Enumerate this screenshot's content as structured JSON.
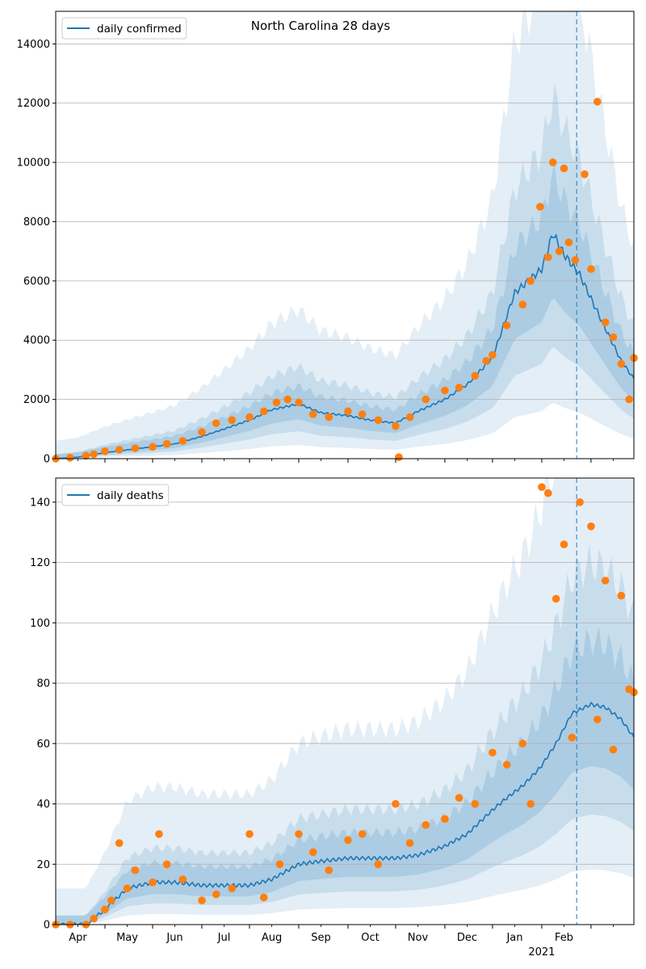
{
  "chart_data": [
    {
      "type": "line",
      "title": "North Carolina 28 days",
      "xlabel": "",
      "ylabel": "",
      "ylim": [
        0,
        15100
      ],
      "yticks": [
        0,
        2000,
        4000,
        6000,
        8000,
        10000,
        12000,
        14000
      ],
      "ytick_labels": [
        "0",
        "2000",
        "4000",
        "6000",
        "8000",
        "10000",
        "12000",
        "14000"
      ],
      "grid": "horizontal",
      "legend_position": "top-left",
      "series": [
        {
          "name": "daily confirmed",
          "style": "line",
          "color": "#1f77b4",
          "x": [
            "2020-03-01",
            "2020-03-15",
            "2020-04-01",
            "2020-04-15",
            "2020-05-01",
            "2020-05-15",
            "2020-06-01",
            "2020-06-15",
            "2020-07-01",
            "2020-07-15",
            "2020-08-01",
            "2020-08-15",
            "2020-09-01",
            "2020-09-15",
            "2020-10-01",
            "2020-10-15",
            "2020-11-01",
            "2020-11-15",
            "2020-12-01",
            "2020-12-15",
            "2021-01-01",
            "2021-01-08",
            "2021-01-15",
            "2021-01-25",
            "2021-02-01",
            "2021-02-10",
            "2021-02-20",
            "2021-02-28"
          ],
          "values": [
            0,
            50,
            200,
            300,
            400,
            500,
            750,
            1000,
            1300,
            1650,
            1850,
            1550,
            1450,
            1300,
            1200,
            1600,
            2000,
            2500,
            3400,
            5600,
            6400,
            7600,
            6900,
            6200,
            5400,
            4400,
            3300,
            2700
          ]
        },
        {
          "name": "",
          "style": "scatter",
          "color": "#ff7f0e",
          "x": [
            "2020-03-01",
            "2020-03-10",
            "2020-03-20",
            "2020-03-25",
            "2020-04-01",
            "2020-04-10",
            "2020-04-20",
            "2020-05-01",
            "2020-05-10",
            "2020-05-20",
            "2020-06-01",
            "2020-06-10",
            "2020-06-20",
            "2020-07-01",
            "2020-07-10",
            "2020-07-18",
            "2020-07-25",
            "2020-08-01",
            "2020-08-10",
            "2020-08-20",
            "2020-09-01",
            "2020-09-10",
            "2020-09-20",
            "2020-10-01",
            "2020-10-03",
            "2020-10-10",
            "2020-10-20",
            "2020-11-01",
            "2020-11-10",
            "2020-11-20",
            "2020-11-27",
            "2020-12-01",
            "2020-12-10",
            "2020-12-20",
            "2020-12-25",
            "2020-12-31",
            "2021-01-05",
            "2021-01-08",
            "2021-01-12",
            "2021-01-15",
            "2021-01-18",
            "2021-01-22",
            "2021-01-28",
            "2021-02-01",
            "2021-02-05",
            "2021-02-10",
            "2021-02-15",
            "2021-02-20",
            "2021-02-25",
            "2021-02-28"
          ],
          "values": [
            0,
            30,
            100,
            150,
            250,
            300,
            350,
            400,
            500,
            600,
            900,
            1200,
            1300,
            1400,
            1600,
            1900,
            2000,
            1900,
            1500,
            1400,
            1600,
            1500,
            1300,
            1100,
            50,
            1400,
            2000,
            2300,
            2400,
            2800,
            3300,
            3500,
            4500,
            5200,
            6000,
            8500,
            6800,
            10000,
            7000,
            9800,
            7300,
            6700,
            9600,
            6400,
            12050,
            4600,
            4100,
            3200,
            2000,
            3400
          ]
        }
      ],
      "bands": "nested confidence bands (light blue)",
      "vline": "2021-01-23"
    },
    {
      "type": "line",
      "title": "",
      "xlabel": "",
      "ylabel": "",
      "ylim": [
        0,
        148
      ],
      "yticks": [
        0,
        20,
        40,
        60,
        80,
        100,
        120,
        140
      ],
      "ytick_labels": [
        "0",
        "20",
        "40",
        "60",
        "80",
        "100",
        "120",
        "140"
      ],
      "grid": "horizontal",
      "legend_position": "top-left",
      "series": [
        {
          "name": "daily deaths",
          "style": "line",
          "color": "#1f77b4",
          "x": [
            "2020-03-01",
            "2020-03-20",
            "2020-04-01",
            "2020-04-15",
            "2020-05-01",
            "2020-05-15",
            "2020-06-01",
            "2020-06-15",
            "2020-07-01",
            "2020-07-15",
            "2020-08-01",
            "2020-08-15",
            "2020-09-01",
            "2020-09-15",
            "2020-10-01",
            "2020-10-15",
            "2020-11-01",
            "2020-11-15",
            "2020-12-01",
            "2020-12-10",
            "2020-12-20",
            "2020-12-31",
            "2021-01-10",
            "2021-01-20",
            "2021-02-01",
            "2021-02-10",
            "2021-02-20",
            "2021-02-28"
          ],
          "values": [
            0,
            0,
            5,
            12,
            14,
            14,
            13,
            13,
            13,
            15,
            20,
            21,
            22,
            22,
            22,
            23,
            26,
            30,
            38,
            42,
            46,
            52,
            60,
            70,
            73,
            72,
            68,
            62
          ]
        },
        {
          "name": "",
          "style": "scatter",
          "color": "#ff7f0e",
          "x": [
            "2020-03-01",
            "2020-03-10",
            "2020-03-20",
            "2020-03-25",
            "2020-04-01",
            "2020-04-05",
            "2020-04-10",
            "2020-04-15",
            "2020-04-20",
            "2020-05-01",
            "2020-05-05",
            "2020-05-10",
            "2020-05-20",
            "2020-06-01",
            "2020-06-10",
            "2020-06-20",
            "2020-07-01",
            "2020-07-10",
            "2020-07-20",
            "2020-08-01",
            "2020-08-10",
            "2020-08-20",
            "2020-09-01",
            "2020-09-10",
            "2020-09-20",
            "2020-10-01",
            "2020-10-10",
            "2020-10-20",
            "2020-11-01",
            "2020-11-10",
            "2020-11-20",
            "2020-12-01",
            "2020-12-10",
            "2020-12-20",
            "2020-12-25",
            "2021-01-01",
            "2021-01-05",
            "2021-01-10",
            "2021-01-15",
            "2021-01-20",
            "2021-01-25",
            "2021-02-01",
            "2021-02-05",
            "2021-02-10",
            "2021-02-15",
            "2021-02-20",
            "2021-02-25",
            "2021-02-28"
          ],
          "values": [
            0,
            0,
            0,
            2,
            5,
            8,
            27,
            12,
            18,
            14,
            30,
            20,
            15,
            8,
            10,
            12,
            30,
            9,
            20,
            30,
            24,
            18,
            28,
            30,
            20,
            40,
            27,
            33,
            35,
            42,
            40,
            57,
            53,
            60,
            40,
            145,
            143,
            108,
            126,
            62,
            140,
            132,
            68,
            114,
            58,
            109,
            78,
            77
          ]
        }
      ],
      "bands": "nested confidence bands (light blue)",
      "vline": "2021-01-23"
    }
  ],
  "xaxis": {
    "tick_labels": [
      "Apr",
      "May",
      "Jun",
      "Jul",
      "Aug",
      "Sep",
      "Oct",
      "Nov",
      "Dec",
      "Jan",
      "Feb"
    ],
    "year_label": "2021"
  }
}
